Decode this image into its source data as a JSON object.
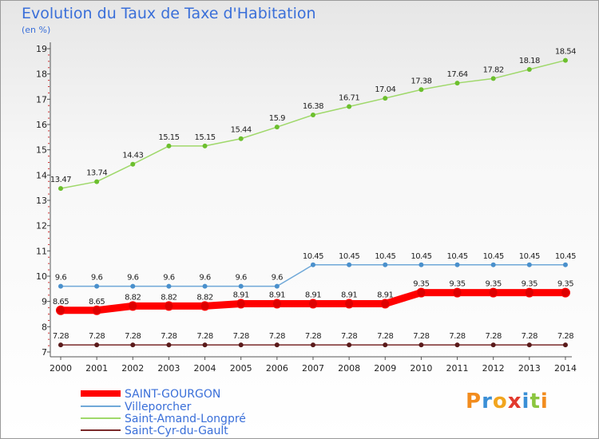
{
  "title": "Evolution du Taux de Taxe d'Habitation",
  "unit": "(en %)",
  "logo": {
    "text": "Proxiti",
    "colors": [
      "#f28c1e",
      "#3a8fd6",
      "#f2a51e",
      "#e23a2e",
      "#3a8fd6",
      "#8cc63f",
      "#f28c1e"
    ]
  },
  "chart_data": {
    "type": "line",
    "x": [
      "2000",
      "2001",
      "2002",
      "2003",
      "2004",
      "2005",
      "2006",
      "2007",
      "2008",
      "2009",
      "2010",
      "2011",
      "2012",
      "2013",
      "2014"
    ],
    "ylim": [
      7,
      19
    ],
    "yticks": [
      7,
      8,
      9,
      10,
      11,
      12,
      13,
      14,
      15,
      16,
      17,
      18,
      19
    ],
    "grid": false,
    "legend_position": "bottom-left",
    "series": [
      {
        "name": "SAINT-GOURGON",
        "color": "#ff0000",
        "marker_color": "#dd0000",
        "width": 9,
        "values": [
          8.65,
          8.65,
          8.82,
          8.82,
          8.82,
          8.91,
          8.91,
          8.91,
          8.91,
          8.91,
          9.35,
          9.35,
          9.35,
          9.35,
          9.35
        ],
        "labels": [
          "8.65",
          "8.65",
          "8.82",
          "8.82",
          "8.82",
          "8.91",
          "8.91",
          "8.91",
          "8.91",
          "8.91",
          "9.35",
          "9.35",
          "9.35",
          "9.35",
          "9.35"
        ]
      },
      {
        "name": "Villeporcher",
        "color": "#6fa8d8",
        "marker_color": "#4a90cc",
        "width": 1.5,
        "values": [
          9.6,
          9.6,
          9.6,
          9.6,
          9.6,
          9.6,
          9.6,
          10.45,
          10.45,
          10.45,
          10.45,
          10.45,
          10.45,
          10.45,
          10.45
        ],
        "labels": [
          "9.6",
          "9.6",
          "9.6",
          "9.6",
          "9.6",
          "9.6",
          "9.6",
          "10.45",
          "10.45",
          "10.45",
          "10.45",
          "10.45",
          "10.45",
          "10.45",
          "10.45"
        ]
      },
      {
        "name": "Saint-Amand-Longpré",
        "color": "#9fd86a",
        "marker_color": "#6cbf2e",
        "width": 1.5,
        "values": [
          13.47,
          13.74,
          14.43,
          15.15,
          15.15,
          15.44,
          15.9,
          16.38,
          16.71,
          17.04,
          17.38,
          17.64,
          17.82,
          18.18,
          18.54
        ],
        "labels": [
          "13.47",
          "13.74",
          "14.43",
          "15.15",
          "15.15",
          "15.44",
          "15.9",
          "16.38",
          "16.71",
          "17.04",
          "17.38",
          "17.64",
          "17.82",
          "18.18",
          "18.54"
        ]
      },
      {
        "name": "Saint-Cyr-du-Gault",
        "color": "#7a2a2a",
        "marker_color": "#5a1a1a",
        "width": 1.5,
        "values": [
          7.28,
          7.28,
          7.28,
          7.28,
          7.28,
          7.28,
          7.28,
          7.28,
          7.28,
          7.28,
          7.28,
          7.28,
          7.28,
          7.28,
          7.28
        ],
        "labels": [
          "7.28",
          "7.28",
          "7.28",
          "7.28",
          "7.28",
          "7.28",
          "7.28",
          "7.28",
          "7.28",
          "7.28",
          "7.28",
          "7.28",
          "7.28",
          "7.28",
          "7.28"
        ]
      }
    ]
  }
}
